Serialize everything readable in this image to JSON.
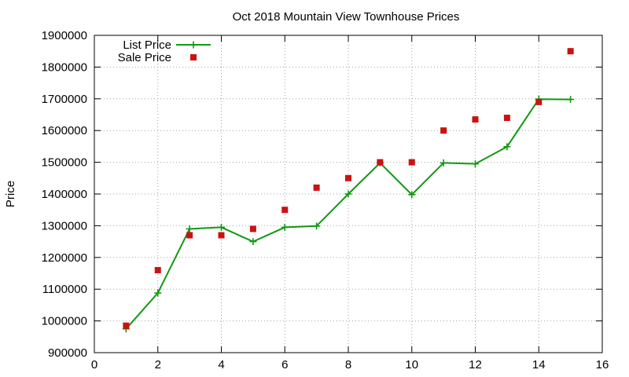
{
  "chart_data": {
    "type": "line",
    "title": "Oct 2018 Mountain View Townhouse Prices",
    "xlabel": "",
    "ylabel": "Price",
    "xlim": [
      0,
      16
    ],
    "ylim": [
      900000,
      1900000
    ],
    "xticks": [
      0,
      2,
      4,
      6,
      8,
      10,
      12,
      14,
      16
    ],
    "yticks": [
      900000,
      1000000,
      1100000,
      1200000,
      1300000,
      1400000,
      1500000,
      1600000,
      1700000,
      1800000,
      1900000
    ],
    "grid": true,
    "legend_position": "top-left",
    "series": [
      {
        "name": "List Price",
        "kind": "line",
        "marker": "plus",
        "color": "#119911",
        "x": [
          1,
          2,
          3,
          4,
          5,
          6,
          7,
          8,
          9,
          10,
          11,
          12,
          13,
          14,
          15
        ],
        "y": [
          975000,
          1088000,
          1290000,
          1295000,
          1250000,
          1295000,
          1299000,
          1400000,
          1498000,
          1398000,
          1498000,
          1495000,
          1549000,
          1699000,
          1698000
        ]
      },
      {
        "name": "Sale Price",
        "kind": "scatter",
        "marker": "square",
        "color": "#cc1111",
        "x": [
          1,
          2,
          3,
          4,
          5,
          6,
          7,
          8,
          9,
          10,
          11,
          12,
          13,
          14,
          15
        ],
        "y": [
          985000,
          1160000,
          1270000,
          1270000,
          1290000,
          1350000,
          1420000,
          1450000,
          1500000,
          1500000,
          1600000,
          1635000,
          1640000,
          1690000,
          1850000
        ]
      }
    ]
  }
}
